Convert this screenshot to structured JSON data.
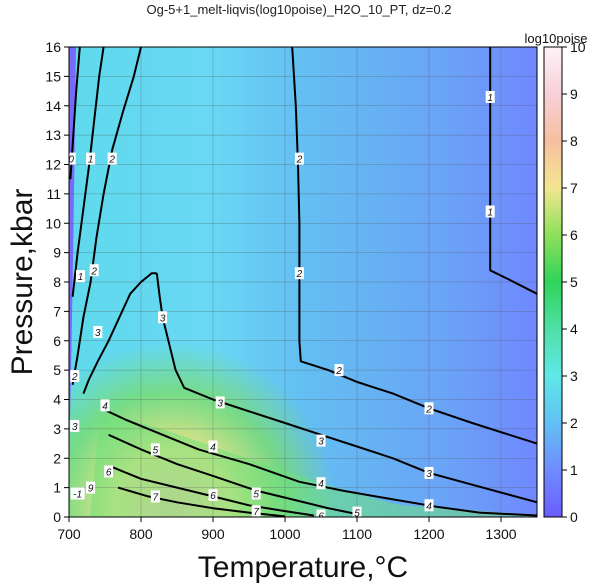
{
  "chart_data": {
    "type": "heatmap",
    "title": "Og-5+1_melt-liqvis(log10poise)_H2O_10_PT, dz=0.2",
    "xlabel": "Temperature,°C",
    "ylabel": "Pressure,kbar",
    "xlim": [
      700,
      1350
    ],
    "ylim": [
      0,
      16
    ],
    "x_ticks": [
      700,
      800,
      900,
      1000,
      1100,
      1200,
      1300
    ],
    "y_ticks": [
      0,
      1,
      2,
      3,
      4,
      5,
      6,
      7,
      8,
      9,
      10,
      11,
      12,
      13,
      14,
      15,
      16
    ],
    "grid": true,
    "colorbar": {
      "title": "log10poise",
      "range": [
        0,
        10
      ],
      "ticks": [
        0,
        1,
        2,
        3,
        4,
        5,
        6,
        7,
        8,
        9,
        10
      ],
      "colors": [
        {
          "value": 0,
          "color": "#6a5cff"
        },
        {
          "value": 1,
          "color": "#6f8cff"
        },
        {
          "value": 2,
          "color": "#62c0f4"
        },
        {
          "value": 3,
          "color": "#5fe8e8"
        },
        {
          "value": 4,
          "color": "#4fe0a6"
        },
        {
          "value": 5,
          "color": "#2fd45a"
        },
        {
          "value": 6,
          "color": "#8ee05a"
        },
        {
          "value": 7,
          "color": "#f2e690"
        },
        {
          "value": 8,
          "color": "#f7bfa0"
        },
        {
          "value": 9,
          "color": "#f7d0d8"
        },
        {
          "value": 10,
          "color": "#fff2f8"
        }
      ]
    },
    "contours": [
      {
        "level": 2,
        "points": [
          [
            1010,
            16
          ],
          [
            1015,
            14
          ],
          [
            1018,
            12
          ],
          [
            1020,
            10
          ],
          [
            1020,
            8
          ],
          [
            1020,
            6
          ],
          [
            1022,
            5.3
          ],
          [
            1060,
            5.0
          ],
          [
            1100,
            4.6
          ],
          [
            1150,
            4.2
          ],
          [
            1200,
            3.7
          ],
          [
            1260,
            3.2
          ],
          [
            1350,
            2.5
          ]
        ]
      },
      {
        "level": 1,
        "points": [
          [
            1285,
            16
          ],
          [
            1285,
            14
          ],
          [
            1285,
            12
          ],
          [
            1285,
            10
          ],
          [
            1285,
            8.4
          ],
          [
            1310,
            8.1
          ],
          [
            1350,
            7.6
          ]
        ]
      },
      {
        "level": 3,
        "points": [
          [
            822,
            8.3
          ],
          [
            826,
            7.5
          ],
          [
            830,
            6.8
          ],
          [
            838,
            6.0
          ],
          [
            848,
            5.0
          ],
          [
            860,
            4.4
          ],
          [
            900,
            4.0
          ],
          [
            950,
            3.6
          ],
          [
            1000,
            3.2
          ],
          [
            1050,
            2.8
          ],
          [
            1100,
            2.4
          ],
          [
            1150,
            2.0
          ],
          [
            1200,
            1.5
          ],
          [
            1260,
            1.1
          ],
          [
            1350,
            0.5
          ]
        ]
      },
      {
        "level": 4,
        "points": [
          [
            745,
            3.7
          ],
          [
            780,
            3.3
          ],
          [
            830,
            2.8
          ],
          [
            880,
            2.3
          ],
          [
            950,
            1.8
          ],
          [
            1020,
            1.2
          ],
          [
            1080,
            0.9
          ],
          [
            1150,
            0.6
          ],
          [
            1210,
            0.35
          ],
          [
            1270,
            0.15
          ],
          [
            1350,
            0.05
          ]
        ]
      },
      {
        "level": 5,
        "points": [
          [
            755,
            2.8
          ],
          [
            800,
            2.3
          ],
          [
            850,
            1.8
          ],
          [
            900,
            1.4
          ],
          [
            960,
            0.9
          ],
          [
            1010,
            0.6
          ],
          [
            1060,
            0.3
          ],
          [
            1100,
            0.1
          ]
        ]
      },
      {
        "level": 6,
        "points": [
          [
            760,
            1.7
          ],
          [
            800,
            1.3
          ],
          [
            850,
            1.0
          ],
          [
            900,
            0.7
          ],
          [
            950,
            0.4
          ],
          [
            1000,
            0.2
          ],
          [
            1040,
            0.05
          ]
        ]
      },
      {
        "level": 7,
        "points": [
          [
            768,
            1.0
          ],
          [
            810,
            0.7
          ],
          [
            850,
            0.5
          ],
          [
            900,
            0.3
          ],
          [
            950,
            0.15
          ],
          [
            1000,
            0.02
          ]
        ]
      },
      {
        "level": 2,
        "points": [
          [
            705,
            4.5
          ],
          [
            712,
            5.5
          ],
          [
            720,
            6.8
          ],
          [
            730,
            8.0
          ],
          [
            738,
            9.5
          ],
          [
            748,
            11
          ],
          [
            760,
            12.5
          ],
          [
            775,
            13.8
          ],
          [
            790,
            15
          ],
          [
            800,
            16
          ]
        ]
      },
      {
        "level": 1,
        "points": [
          [
            705,
            7.5
          ],
          [
            712,
            9
          ],
          [
            720,
            10.5
          ],
          [
            728,
            12
          ],
          [
            735,
            13.5
          ],
          [
            742,
            15
          ],
          [
            748,
            16
          ]
        ]
      },
      {
        "level": 3,
        "points": [
          [
            720,
            4.2
          ],
          [
            728,
            4.7
          ],
          [
            740,
            5.3
          ],
          [
            755,
            6.0
          ],
          [
            770,
            6.8
          ],
          [
            785,
            7.6
          ],
          [
            800,
            8.0
          ],
          [
            815,
            8.3
          ],
          [
            822,
            8.3
          ]
        ]
      },
      {
        "level": 0,
        "points": [
          [
            702,
            11.5
          ],
          [
            706,
            13
          ],
          [
            710,
            14.5
          ],
          [
            715,
            16
          ]
        ]
      }
    ],
    "contour_labels": [
      {
        "text": "2",
        "x": 1020,
        "y": 12.2
      },
      {
        "text": "2",
        "x": 1020,
        "y": 8.3
      },
      {
        "text": "2",
        "x": 1075,
        "y": 5.0
      },
      {
        "text": "2",
        "x": 1200,
        "y": 3.7
      },
      {
        "text": "1",
        "x": 1285,
        "y": 14.3
      },
      {
        "text": "1",
        "x": 1285,
        "y": 10.4
      },
      {
        "text": "3",
        "x": 830,
        "y": 6.8
      },
      {
        "text": "3",
        "x": 910,
        "y": 3.9
      },
      {
        "text": "3",
        "x": 1050,
        "y": 2.6
      },
      {
        "text": "3",
        "x": 1200,
        "y": 1.5
      },
      {
        "text": "4",
        "x": 750,
        "y": 3.8
      },
      {
        "text": "4",
        "x": 900,
        "y": 2.4
      },
      {
        "text": "4",
        "x": 1050,
        "y": 1.15
      },
      {
        "text": "4",
        "x": 1200,
        "y": 0.4
      },
      {
        "text": "5",
        "x": 820,
        "y": 2.3
      },
      {
        "text": "5",
        "x": 960,
        "y": 0.8
      },
      {
        "text": "5",
        "x": 1100,
        "y": 0.15
      },
      {
        "text": "6",
        "x": 755,
        "y": 1.55
      },
      {
        "text": "6",
        "x": 900,
        "y": 0.75
      },
      {
        "text": "6",
        "x": 1050,
        "y": 0.05
      },
      {
        "text": "7",
        "x": 820,
        "y": 0.7
      },
      {
        "text": "7",
        "x": 960,
        "y": 0.2
      },
      {
        "text": "2",
        "x": 760,
        "y": 12.2
      },
      {
        "text": "2",
        "x": 735,
        "y": 8.4
      },
      {
        "text": "2",
        "x": 708,
        "y": 4.8
      },
      {
        "text": "1",
        "x": 730,
        "y": 12.2
      },
      {
        "text": "1",
        "x": 716,
        "y": 8.2
      },
      {
        "text": "0",
        "x": 703,
        "y": 12.2
      },
      {
        "text": "3",
        "x": 708,
        "y": 3.1
      },
      {
        "text": "3",
        "x": 740,
        "y": 6.3
      },
      {
        "text": "-1",
        "x": 712,
        "y": 0.8
      },
      {
        "text": "9",
        "x": 730,
        "y": 1.0
      }
    ]
  }
}
